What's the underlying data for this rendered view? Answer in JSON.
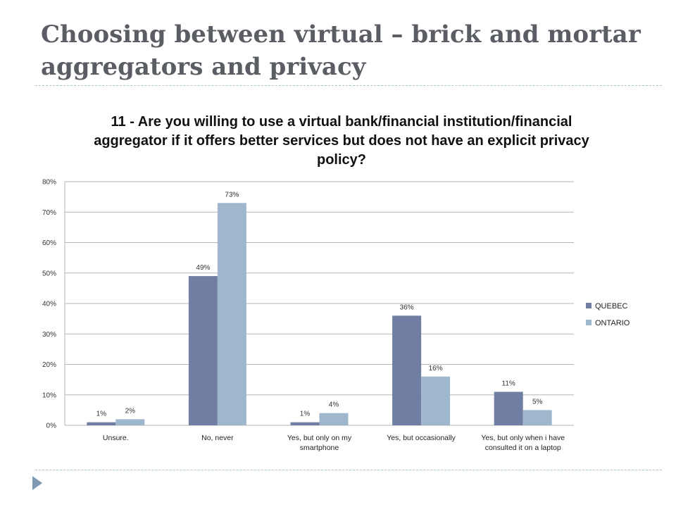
{
  "slide": {
    "title": "Choosing between virtual – brick and mortar aggregators and privacy"
  },
  "colors": {
    "quebec": "#717ea3",
    "ontario": "#9fb7cd",
    "gridline": "#b5b5b5",
    "divider": "#a9c3cf",
    "nav_marker": "#7f9bb4"
  },
  "chart_data": {
    "type": "bar",
    "title": "11 - Are you willing to use a virtual bank/financial institution/financial aggregator if it offers better services but does not have an explicit privacy policy?",
    "categories": [
      [
        "Unsure."
      ],
      [
        "No, never"
      ],
      [
        "Yes, but only on my",
        "smartphone"
      ],
      [
        "Yes, but occasionally"
      ],
      [
        "Yes, but only when i have",
        "consulted it on a laptop"
      ]
    ],
    "series": [
      {
        "name": "QUEBEC",
        "values": [
          1,
          49,
          1,
          36,
          11
        ],
        "labels": [
          "1%",
          "49%",
          "1%",
          "36%",
          "11%"
        ]
      },
      {
        "name": "ONTARIO",
        "values": [
          2,
          73,
          4,
          16,
          5
        ],
        "labels": [
          "2%",
          "73%",
          "4%",
          "16%",
          "5%"
        ]
      }
    ],
    "y_ticks": [
      "0%",
      "10%",
      "20%",
      "30%",
      "40%",
      "50%",
      "60%",
      "70%",
      "80%"
    ],
    "ylim": [
      0,
      80
    ],
    "grid": true,
    "legend": "right"
  }
}
